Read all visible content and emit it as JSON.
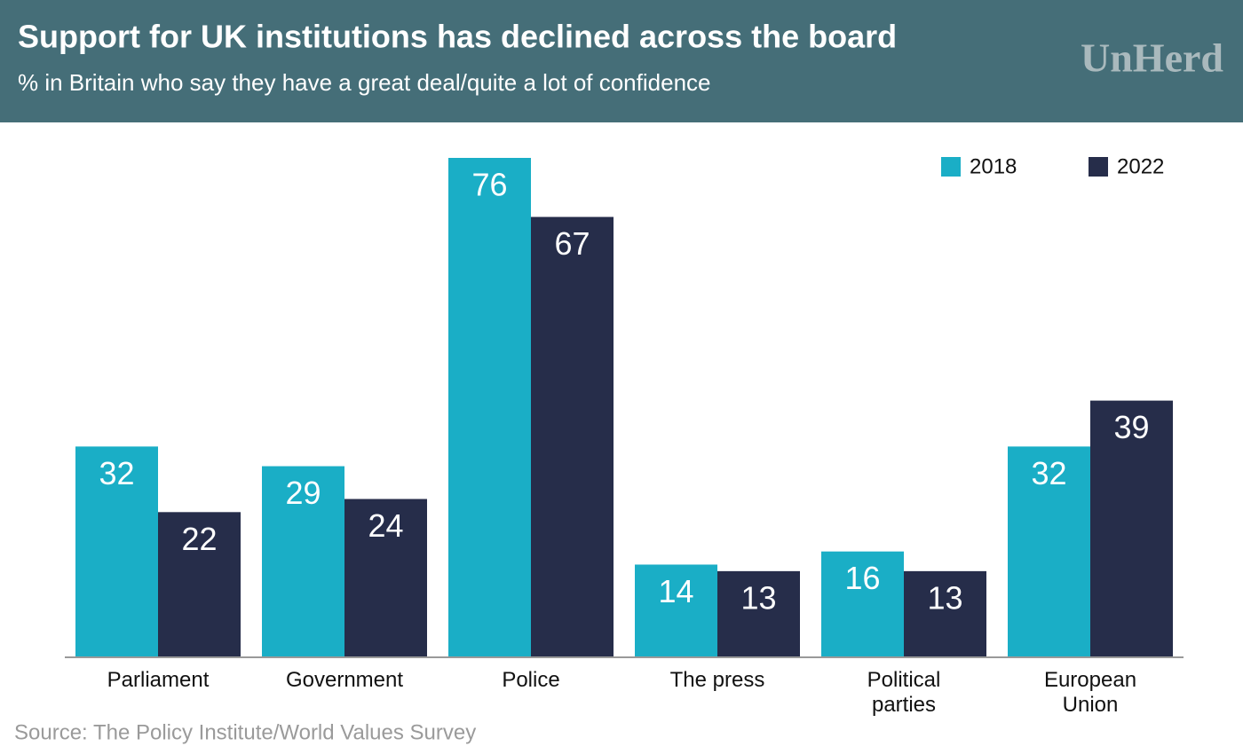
{
  "chart_data": {
    "type": "bar",
    "title": "Support for UK institutions has declined across the board",
    "subtitle": "% in Britain who say they have a great deal/quite a lot of confidence",
    "logo": "UnHerd",
    "source": "Source: The Policy Institute/World Values Survey",
    "categories": [
      "Parliament",
      "Government",
      "Police",
      "The press",
      "Political parties",
      "European Union"
    ],
    "series": [
      {
        "name": "2018",
        "color": "#1aaec6",
        "values": [
          32,
          29,
          76,
          14,
          16,
          32
        ]
      },
      {
        "name": "2022",
        "color": "#262d4a",
        "values": [
          22,
          24,
          67,
          13,
          13,
          39
        ]
      }
    ],
    "legend": "top-right"
  }
}
